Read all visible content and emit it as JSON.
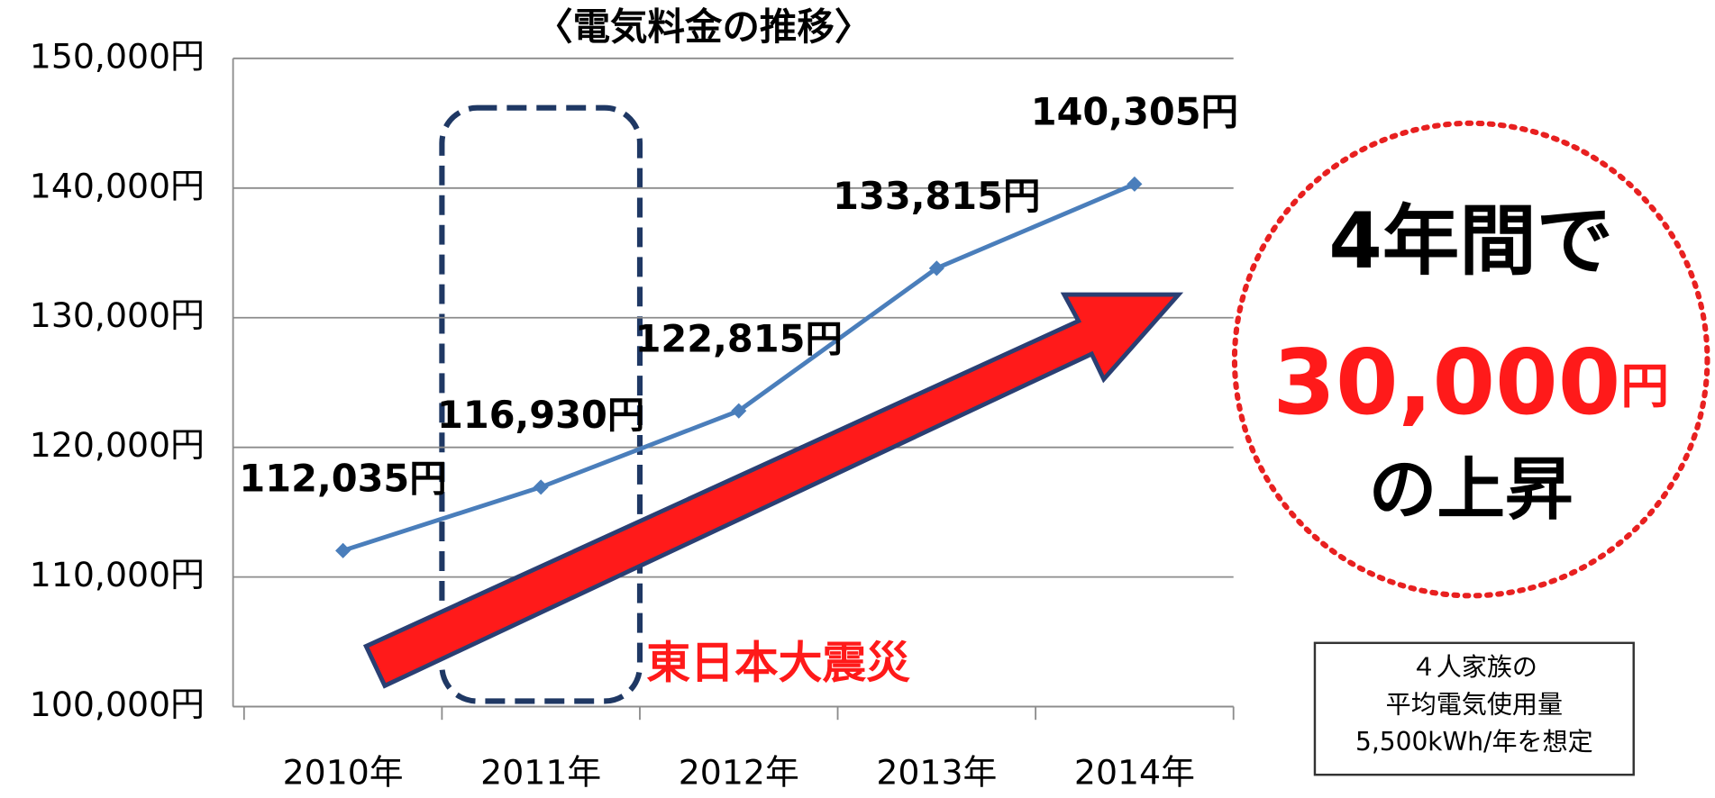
{
  "chart_data": {
    "type": "line",
    "title": "〈電気料金の推移〉",
    "categories": [
      "2010年",
      "2011年",
      "2012年",
      "2013年",
      "2014年"
    ],
    "values": [
      112035,
      116930,
      122815,
      133815,
      140305
    ],
    "value_labels": [
      "112,035円",
      "116,930円",
      "122,815円",
      "133,815円",
      "140,305円"
    ],
    "color": "#4a7ebb",
    "ylim": [
      100000,
      150000
    ],
    "yticks": [
      {
        "value": 100000,
        "label": "100,000円"
      },
      {
        "value": 110000,
        "label": "110,000円"
      },
      {
        "value": 120000,
        "label": "120,000円"
      },
      {
        "value": 130000,
        "label": "130,000円"
      },
      {
        "value": 140000,
        "label": "140,000円"
      },
      {
        "value": 150000,
        "label": "150,000円"
      }
    ],
    "grid": true,
    "annotation": "東日本大震災",
    "callout": {
      "line1": "4年間で",
      "amount": "30,000",
      "unit": "円",
      "line3": "の上昇"
    },
    "note": [
      "４人家族の",
      "平均電気使用量",
      "5,500kWh/年を想定"
    ]
  }
}
